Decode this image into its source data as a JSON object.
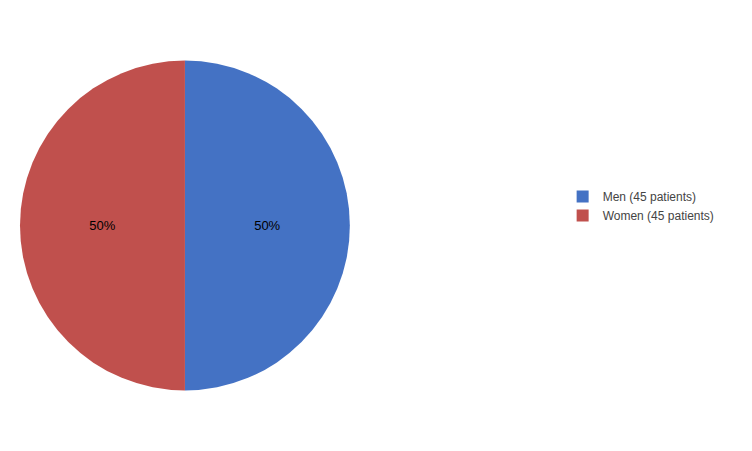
{
  "chart_data": {
    "type": "pie",
    "categories": [
      "Men (45 patients)",
      "Women (45 patients)"
    ],
    "values": [
      50,
      50
    ],
    "value_labels": [
      "50%",
      "50%"
    ],
    "colors": [
      "#4472C4",
      "#C0504D"
    ],
    "data_labels": true,
    "legend": "right"
  }
}
